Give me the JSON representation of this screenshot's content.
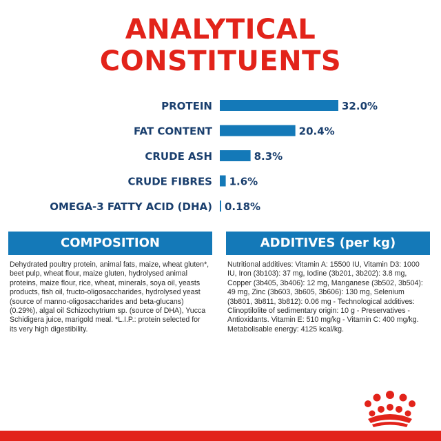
{
  "title": {
    "line1": "ANALYTICAL",
    "line2": "CONSTITUENTS"
  },
  "chart_data": {
    "type": "bar",
    "orientation": "horizontal",
    "categories": [
      "PROTEIN",
      "FAT CONTENT",
      "CRUDE ASH",
      "CRUDE FIBRES",
      "OMEGA-3 FATTY ACID (DHA)"
    ],
    "values": [
      32.0,
      20.4,
      8.3,
      1.6,
      0.18
    ],
    "value_labels": [
      "32.0%",
      "20.4%",
      "8.3%",
      "1.6%",
      "0.18%"
    ],
    "unit": "%",
    "bar_color": "#1479b8",
    "label_color": "#1a3f6e",
    "grid": false,
    "legend": "none",
    "xlim": [
      0,
      32
    ]
  },
  "composition": {
    "header": "COMPOSITION",
    "text": "Dehydrated poultry protein, animal fats, maize, wheat gluten*, beet pulp, wheat flour, maize gluten, hydrolysed animal proteins, maize flour, rice, wheat, minerals, soya oil, yeasts products, fish oil, fructo-oligosaccharides, hydrolysed yeast (source of manno-oligosaccharides and beta-glucans) (0.29%), algal oil Schizochytrium sp. (source of DHA), Yucca Schidigera juice, marigold meal. *L.I.P.: protein selected for its very high digestibility."
  },
  "additives": {
    "header": "ADDITIVES (per kg)",
    "text": "Nutritional additives: Vitamin A: 15500 IU, Vitamin D3: 1000 IU, Iron (3b103): 37 mg, Iodine (3b201, 3b202): 3.8 mg, Copper (3b405, 3b406): 12 mg, Manganese (3b502, 3b504): 49 mg, Zinc (3b603, 3b605, 3b606): 130 mg, Selenium (3b801, 3b811, 3b812): 0.06 mg - Technological additives: Clinoptilolite of sedimentary origin: 10 g - Preservatives - Antioxidants. Vitamin E: 510 mg/kg - Vitamin C: 400 mg/kg. Metabolisable energy: 4125 kcal/kg."
  },
  "colors": {
    "brand_red": "#e2231a",
    "accent_blue": "#1479b8",
    "text_navy": "#1a3f6e"
  },
  "logo": {
    "icon": "crown-icon"
  }
}
